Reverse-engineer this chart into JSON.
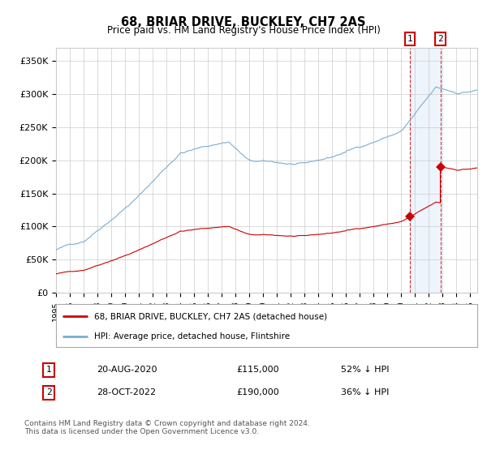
{
  "title": "68, BRIAR DRIVE, BUCKLEY, CH7 2AS",
  "subtitle": "Price paid vs. HM Land Registry's House Price Index (HPI)",
  "ylim": [
    0,
    370000
  ],
  "yticks": [
    0,
    50000,
    100000,
    150000,
    200000,
    250000,
    300000,
    350000
  ],
  "ytick_labels": [
    "£0",
    "£50K",
    "£100K",
    "£150K",
    "£200K",
    "£250K",
    "£300K",
    "£350K"
  ],
  "hpi_color": "#7aadd4",
  "price_color": "#cc0000",
  "background_color": "#ffffff",
  "grid_color": "#cccccc",
  "shade_color": "#ddeeff",
  "sale1_date": 2020.64,
  "sale2_date": 2022.83,
  "sale1_price": 115000,
  "sale2_price": 190000,
  "legend_label_price": "68, BRIAR DRIVE, BUCKLEY, CH7 2AS (detached house)",
  "legend_label_hpi": "HPI: Average price, detached house, Flintshire",
  "table_row1": [
    "1",
    "20-AUG-2020",
    "£115,000",
    "52% ↓ HPI"
  ],
  "table_row2": [
    "2",
    "28-OCT-2022",
    "£190,000",
    "36% ↓ HPI"
  ],
  "footnote": "Contains HM Land Registry data © Crown copyright and database right 2024.\nThis data is licensed under the Open Government Licence v3.0."
}
